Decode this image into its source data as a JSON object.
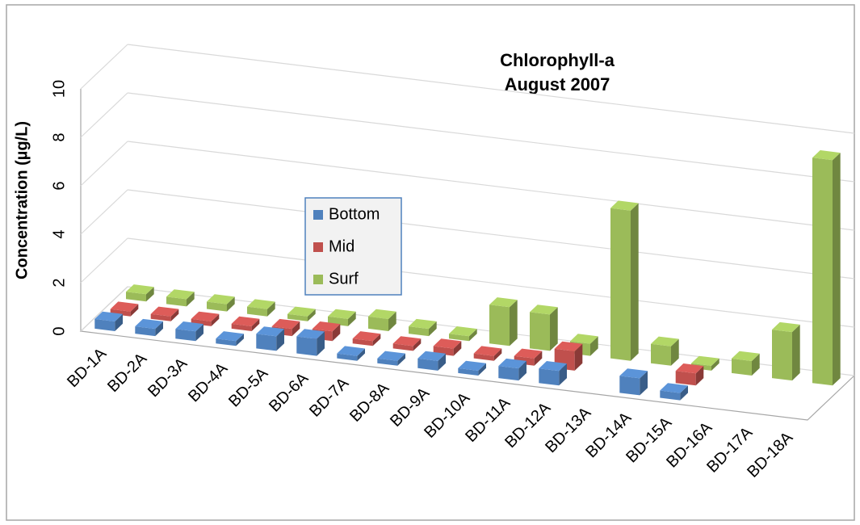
{
  "chart_data": {
    "type": "bar3d",
    "title": "Chlorophyll-a",
    "subtitle": "August 2007",
    "y_label": "Concentration (µg/L)",
    "categories": [
      "BD-1A",
      "BD-2A",
      "BD-3A",
      "BD-4A",
      "BD-5A",
      "BD-6A",
      "BD-7A",
      "BD-8A",
      "BD-9A",
      "BD-10A",
      "BD-11A",
      "BD-12A",
      "BD-13A",
      "BD-14A",
      "BD-15A",
      "BD-16A",
      "BD-17A",
      "BD-18A"
    ],
    "series": [
      {
        "name": "Bottom",
        "color": "#4f81bd",
        "values": [
          0.4,
          0.3,
          0.4,
          0.2,
          0.6,
          0.7,
          0.2,
          0.2,
          0.4,
          0.2,
          0.5,
          0.6,
          null,
          0.7,
          0.3,
          null,
          null,
          null
        ]
      },
      {
        "name": "Mid",
        "color": "#c0504d",
        "values": [
          0.2,
          0.2,
          0.2,
          0.2,
          0.3,
          0.4,
          0.2,
          0.2,
          0.3,
          0.2,
          0.3,
          0.8,
          null,
          null,
          0.5,
          null,
          null,
          null
        ]
      },
      {
        "name": "Surf",
        "color": "#9bbb59",
        "values": [
          0.3,
          0.3,
          0.3,
          0.3,
          0.2,
          0.3,
          0.5,
          0.3,
          0.2,
          1.6,
          1.5,
          0.5,
          6.2,
          0.8,
          0.2,
          0.6,
          2.0,
          9.3
        ]
      }
    ],
    "ylim": [
      0,
      10
    ],
    "yticks": [
      0,
      2,
      4,
      6,
      8,
      10
    ],
    "grid": true
  }
}
